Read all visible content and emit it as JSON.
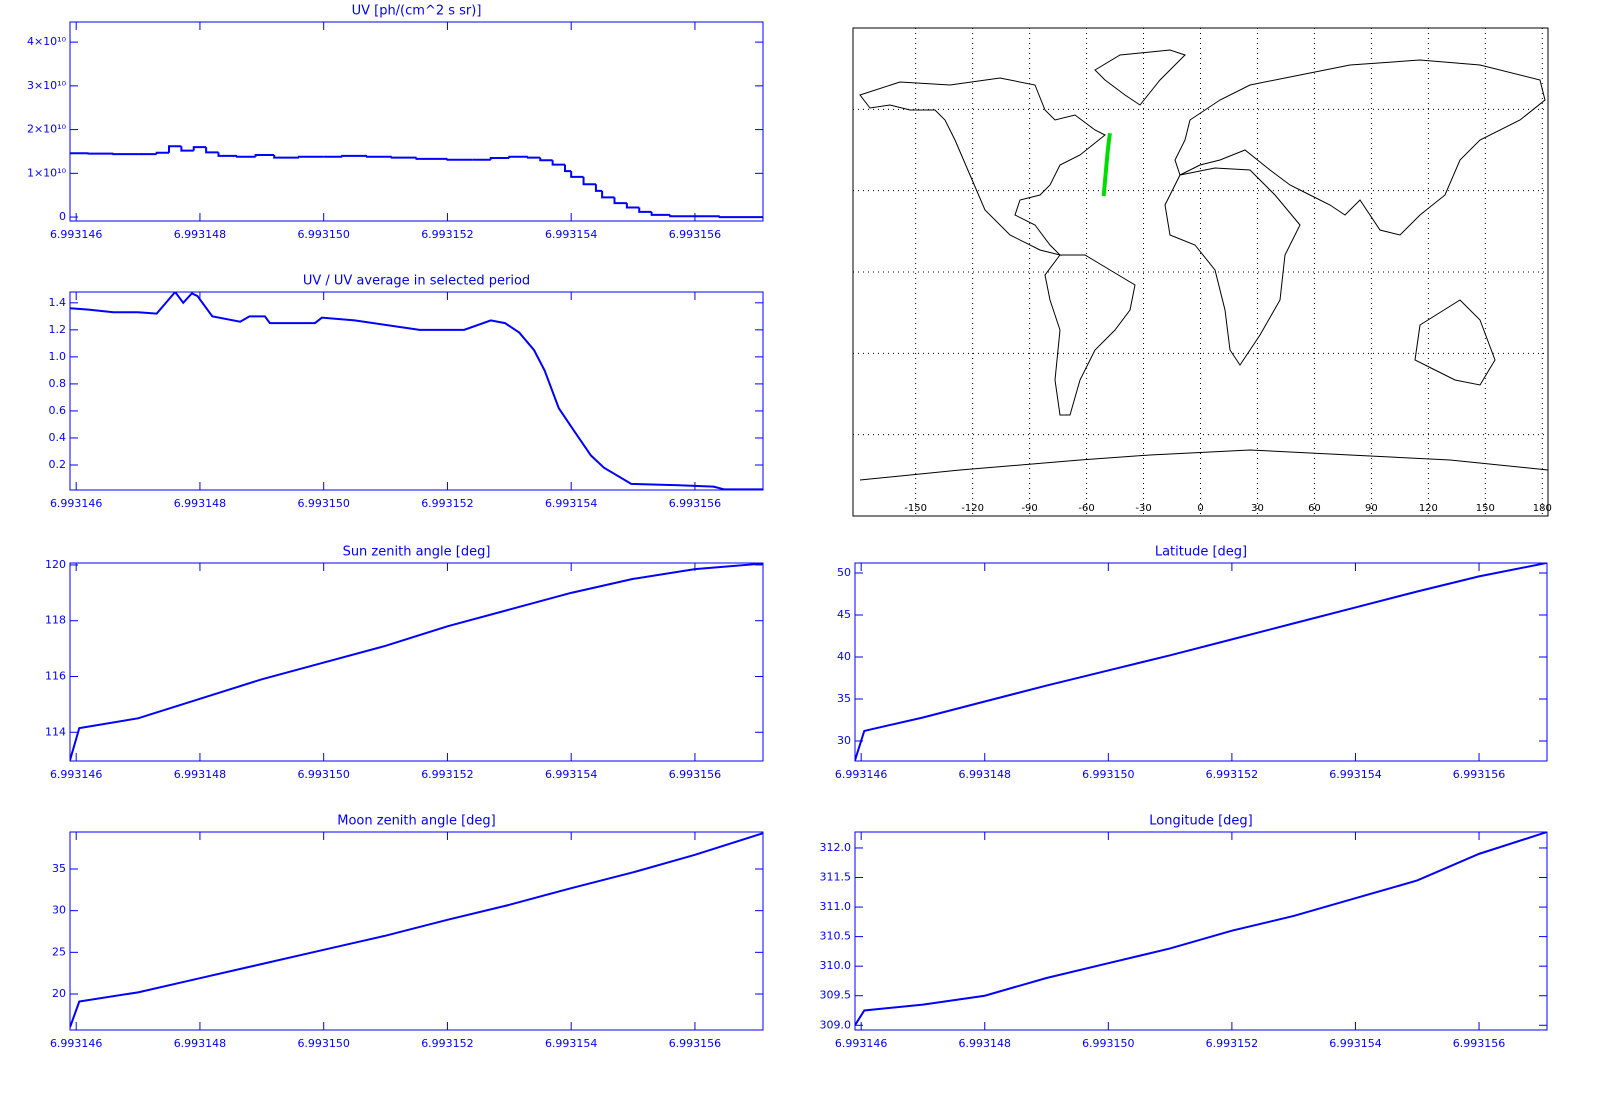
{
  "chart_data": [
    {
      "type": "line",
      "step": true,
      "title": "UV [ph/(cm^2 s sr)]",
      "color": "#0000ff",
      "x": [
        6.9931459,
        6.9931462,
        6.9931466,
        6.993147,
        6.9931473,
        6.9931475,
        6.9931477,
        6.9931479,
        6.9931481,
        6.9931483,
        6.9931486,
        6.9931489,
        6.9931492,
        6.9931496,
        6.99315,
        6.9931503,
        6.9931507,
        6.9931511,
        6.9931515,
        6.993152,
        6.9931524,
        6.9931527,
        6.993153,
        6.9931533,
        6.9931535,
        6.9931537,
        6.9931539,
        6.993154,
        6.9931542,
        6.9931544,
        6.9931545,
        6.9931547,
        6.9931549,
        6.9931551,
        6.9931553,
        6.9931556,
        6.9931564,
        6.9931571
      ],
      "values": [
        14600000000.0,
        14500000000.0,
        14400000000.0,
        14400000000.0,
        14700000000.0,
        16200000000.0,
        15200000000.0,
        16000000000.0,
        14800000000.0,
        14000000000.0,
        13800000000.0,
        14200000000.0,
        13600000000.0,
        13800000000.0,
        13800000000.0,
        14000000000.0,
        13800000000.0,
        13600000000.0,
        13300000000.0,
        13100000000.0,
        13100000000.0,
        13500000000.0,
        13800000000.0,
        13600000000.0,
        13000000000.0,
        12000000000.0,
        10500000000.0,
        9200000000.0,
        7500000000.0,
        6000000000.0,
        4500000000.0,
        3200000000.0,
        2200000000.0,
        1200000000.0,
        500000000.0,
        200000000.0,
        0,
        -300000000.0
      ],
      "xlim": [
        6.9931459,
        6.9931571
      ],
      "xticks": [
        6.993146,
        6.993148,
        {
          "value": 6.99315,
          "label": "6.993150"
        },
        6.993152,
        6.993154,
        6.993156
      ],
      "ylim": [
        -900000000.0,
        44600000000.0
      ],
      "yticks": [
        0,
        {
          "value": 10000000000.0,
          "label": "1×10¹⁰"
        },
        {
          "value": 20000000000.0,
          "label": "2×10¹⁰"
        },
        {
          "value": 30000000000.0,
          "label": "3×10¹⁰"
        },
        {
          "value": 40000000000.0,
          "label": "4×10¹⁰"
        }
      ]
    },
    {
      "type": "line",
      "title": "UV / UV average in selected period",
      "color": "#0000ff",
      "x": [
        6.9931459,
        6.9931462,
        6.9931466,
        6.993147,
        6.9931473,
        6.9931476,
        6.99314773,
        6.99314787,
        6.99314796,
        6.9931482,
        6.99314865,
        6.9931488,
        6.99314905,
        6.99314913,
        6.99314986,
        6.99314997,
        6.9931505,
        6.99315155,
        6.99315227,
        6.9931527,
        6.99315293,
        6.99315316,
        6.9931534,
        6.99315357,
        6.9931538,
        6.99315405,
        6.99315432,
        6.99315453,
        6.99315497,
        6.99315574,
        6.9931563,
        6.99315647,
        6.9931571
      ],
      "values": [
        1.36,
        1.35,
        1.33,
        1.33,
        1.32,
        1.48,
        1.4,
        1.47,
        1.45,
        1.3,
        1.26,
        1.3,
        1.3,
        1.25,
        1.25,
        1.29,
        1.27,
        1.2,
        1.2,
        1.27,
        1.25,
        1.18,
        1.05,
        0.9,
        0.62,
        0.45,
        0.27,
        0.18,
        0.06,
        0.05,
        0.04,
        0.02,
        0.02
      ],
      "xlim": [
        6.9931459,
        6.9931571
      ],
      "xticks": [
        6.993146,
        6.993148,
        {
          "value": 6.99315,
          "label": "6.993150"
        },
        6.993152,
        6.993154,
        6.993156
      ],
      "ylim": [
        0.015,
        1.48
      ],
      "yticks": [
        0.2,
        0.4,
        0.6,
        0.8,
        {
          "value": 1,
          "label": "1.0"
        },
        1.2,
        1.4
      ]
    },
    {
      "type": "map",
      "color": "#00dd00",
      "x": [
        -51.0,
        -50.5,
        -50.0,
        -49.5,
        -49.0,
        -48.4,
        -47.7
      ],
      "values": [
        28.0,
        31.9,
        35.8,
        39.7,
        43.6,
        47.4,
        51.2
      ],
      "xlim": [
        -183,
        183
      ],
      "xticks": [
        -150,
        -120,
        -90,
        -60,
        -30,
        0,
        30,
        60,
        90,
        120,
        150,
        180
      ],
      "ylim": [
        -90,
        90
      ],
      "yticks": [
        -60,
        -30,
        0,
        30,
        60
      ]
    },
    {
      "type": "line",
      "title": "Sun zenith angle [deg]",
      "color": "#0000ff",
      "x": [
        6.9931459,
        6.99314605,
        6.993147,
        6.993148,
        6.993149,
        6.99315,
        6.993151,
        6.993152,
        6.993153,
        6.993154,
        6.993155,
        6.993156,
        6.9931571
      ],
      "values": [
        113.0,
        114.15,
        114.5,
        115.2,
        115.9,
        116.5,
        117.1,
        117.8,
        118.4,
        119.0,
        119.5,
        119.85,
        120.05
      ],
      "xlim": [
        6.9931459,
        6.9931571
      ],
      "xticks": [
        6.993146,
        6.993148,
        {
          "value": 6.99315,
          "label": "6.993150"
        },
        6.993152,
        6.993154,
        6.993156
      ],
      "ylim": [
        112.97,
        120.07
      ],
      "yticks": [
        114,
        116,
        118,
        120
      ]
    },
    {
      "type": "line",
      "title": "Latitude [deg]",
      "color": "#0000ff",
      "x": [
        6.9931459,
        6.99314605,
        6.993147,
        6.993148,
        6.993149,
        6.99315,
        6.993151,
        6.993152,
        6.993153,
        6.993154,
        6.993155,
        6.993156,
        6.9931571
      ],
      "values": [
        27.7,
        31.2,
        32.8,
        34.7,
        36.6,
        38.4,
        40.2,
        42.1,
        44.0,
        45.9,
        47.8,
        49.6,
        51.2
      ],
      "xlim": [
        6.9931459,
        6.9931571
      ],
      "xticks": [
        6.993146,
        6.993148,
        {
          "value": 6.99315,
          "label": "6.993150"
        },
        6.993152,
        6.993154,
        6.993156
      ],
      "ylim": [
        27.62,
        51.19
      ],
      "yticks": [
        30,
        35,
        40,
        45,
        50
      ]
    },
    {
      "type": "line",
      "title": "Moon zenith angle [deg]",
      "color": "#0000ff",
      "x": [
        6.9931459,
        6.99314605,
        6.993147,
        6.993148,
        6.993149,
        6.99315,
        6.993151,
        6.993152,
        6.993153,
        6.993154,
        6.993155,
        6.993156,
        6.9931571
      ],
      "values": [
        16,
        19.1,
        20.2,
        21.9,
        23.6,
        25.3,
        27.0,
        28.9,
        30.7,
        32.7,
        34.6,
        36.7,
        39.3
      ],
      "xlim": [
        6.9931459,
        6.9931571
      ],
      "xticks": [
        6.993146,
        6.993148,
        {
          "value": 6.99315,
          "label": "6.993150"
        },
        6.993152,
        6.993154,
        6.993156
      ],
      "ylim": [
        15.68,
        39.44
      ],
      "yticks": [
        20,
        25,
        30,
        35
      ]
    },
    {
      "type": "line",
      "title": "Longitude [deg]",
      "color": "#0000ff",
      "x": [
        6.9931459,
        6.99314605,
        6.993147,
        6.993148,
        6.993149,
        6.99315,
        6.993151,
        6.993152,
        6.993153,
        6.993154,
        6.993155,
        6.993156,
        6.9931571
      ],
      "values": [
        309.0,
        309.25,
        309.35,
        309.5,
        309.8,
        310.05,
        310.3,
        310.6,
        310.85,
        311.15,
        311.45,
        311.9,
        312.27
      ],
      "xlim": [
        6.9931459,
        6.9931571
      ],
      "xticks": [
        6.993146,
        6.993148,
        {
          "value": 6.99315,
          "label": "6.993150"
        },
        6.993152,
        6.993154,
        6.993156
      ],
      "ylim": [
        308.92,
        312.27
      ],
      "yticks": [
        {
          "value": 309,
          "label": "309.0"
        },
        309.5,
        {
          "value": 310,
          "label": "310.0"
        },
        310.5,
        {
          "value": 311,
          "label": "311.0"
        },
        311.5,
        {
          "value": 312,
          "label": "312.0"
        }
      ]
    }
  ]
}
